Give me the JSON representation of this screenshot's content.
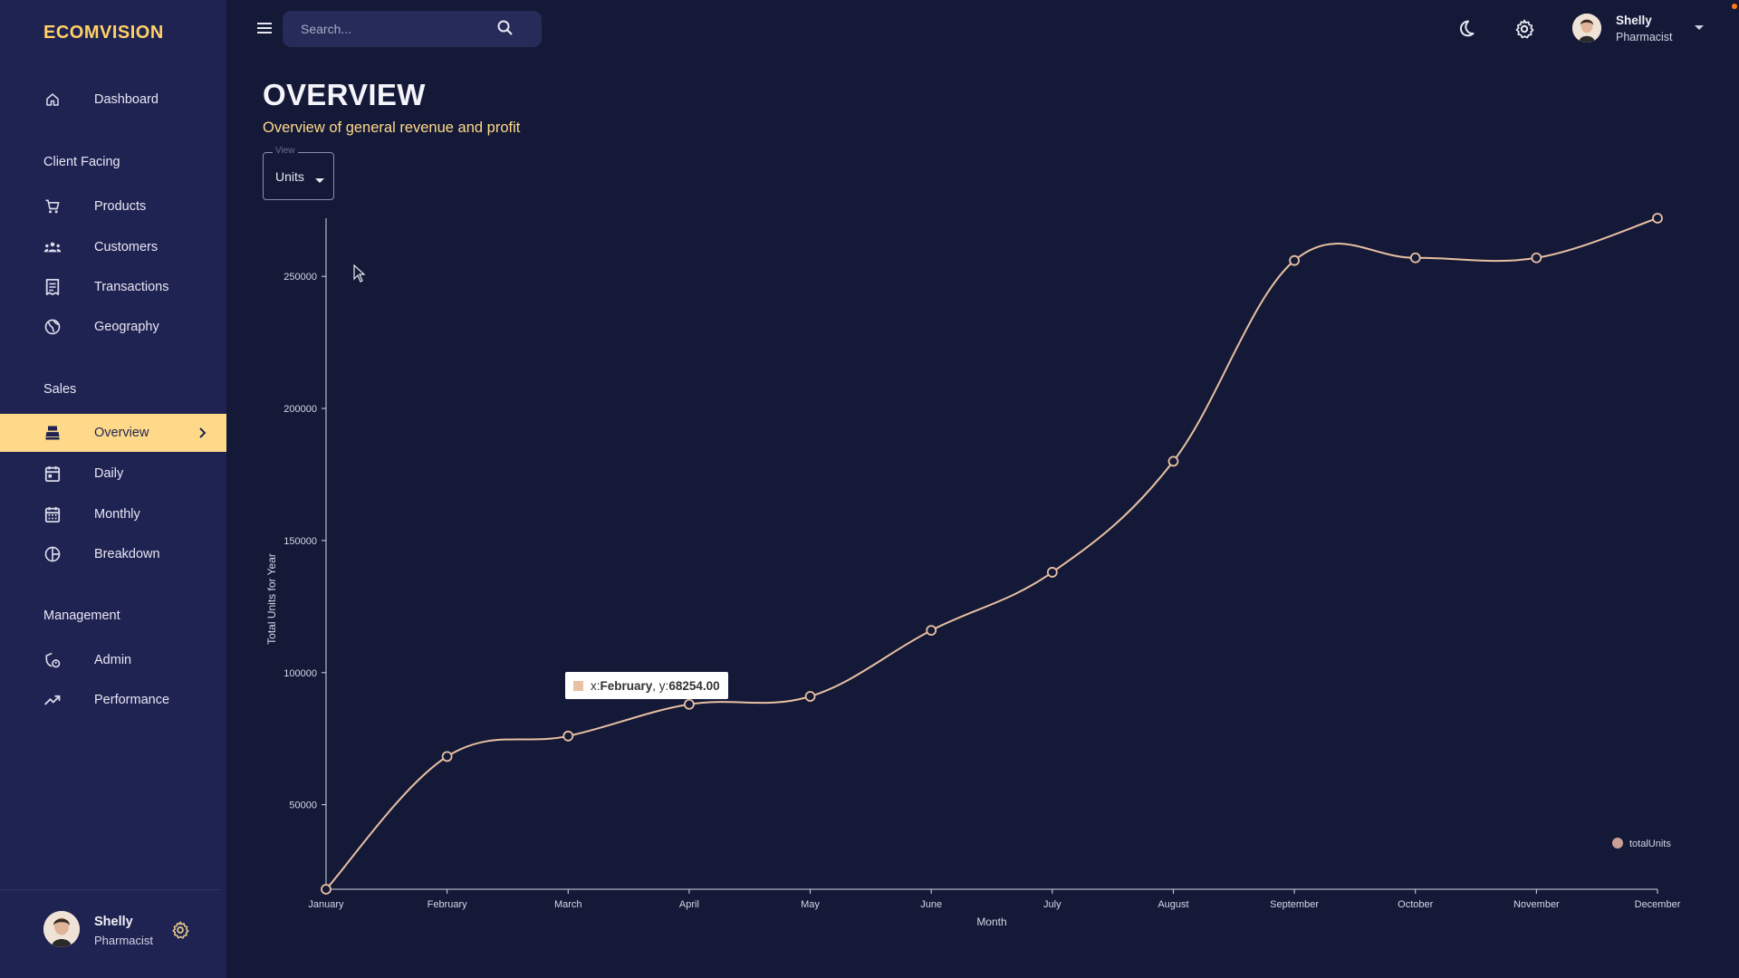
{
  "brand": "ECOMVISION",
  "sidebar": {
    "items": [
      {
        "label": "Dashboard",
        "icon": "home-icon"
      },
      {
        "section": "Client Facing"
      },
      {
        "label": "Products",
        "icon": "shopping-cart-icon"
      },
      {
        "label": "Customers",
        "icon": "groups-icon"
      },
      {
        "label": "Transactions",
        "icon": "receipt-icon"
      },
      {
        "label": "Geography",
        "icon": "globe-icon"
      },
      {
        "section": "Sales"
      },
      {
        "label": "Overview",
        "icon": "point-of-sale-icon",
        "active": true
      },
      {
        "label": "Daily",
        "icon": "calendar-today-icon"
      },
      {
        "label": "Monthly",
        "icon": "calendar-month-icon"
      },
      {
        "label": "Breakdown",
        "icon": "pie-chart-icon"
      },
      {
        "section": "Management"
      },
      {
        "label": "Admin",
        "icon": "admin-icon"
      },
      {
        "label": "Performance",
        "icon": "trending-up-icon"
      }
    ],
    "user": {
      "name": "Shelly",
      "role": "Pharmacist"
    }
  },
  "topbar": {
    "search_placeholder": "Search...",
    "user": {
      "name": "Shelly",
      "role": "Pharmacist"
    }
  },
  "header": {
    "title": "OVERVIEW",
    "subtitle": "Overview of general revenue and profit"
  },
  "view_select": {
    "label": "View",
    "value": "Units"
  },
  "colors": {
    "background": "#141937",
    "sidebar": "#1f2352",
    "accent": "#ffd98a",
    "brand": "#ffd166",
    "line": "#e8c0a2"
  },
  "tooltip": {
    "x_label": "x: ",
    "x_value": "February",
    "y_label": ", y: ",
    "y_value": "68254.00"
  },
  "chart_data": {
    "type": "line",
    "categories": [
      "January",
      "February",
      "March",
      "April",
      "May",
      "June",
      "July",
      "August",
      "September",
      "October",
      "November",
      "December"
    ],
    "series": [
      {
        "name": "totalUnits",
        "values": [
          18000,
          68254,
          76000,
          88000,
          91000,
          116000,
          138000,
          180000,
          256000,
          257000,
          257000,
          272000
        ]
      }
    ],
    "xlabel": "Month",
    "ylabel": "Total Units for Year",
    "yticks": [
      50000,
      100000,
      150000,
      200000,
      250000
    ],
    "ylim": [
      18000,
      272000
    ],
    "grid": false,
    "legend": "bottom-right",
    "curve": "smooth"
  }
}
